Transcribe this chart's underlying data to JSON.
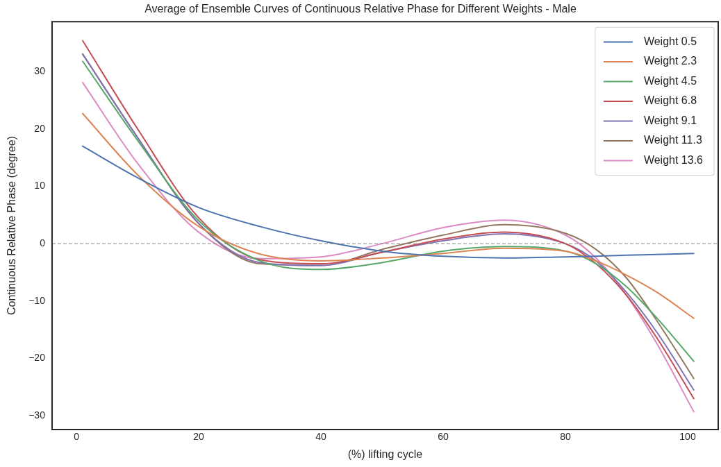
{
  "chart_data": {
    "type": "line",
    "title": "Average of Ensemble Curves of Continuous Relative Phase for Different Weights - Male",
    "xlabel": "(%) lifting cycle",
    "ylabel": "Continuous Relative Phase (degree)",
    "x": [
      1,
      10,
      20,
      30,
      40,
      50,
      60,
      70,
      80,
      85,
      90,
      95,
      101
    ],
    "series": [
      {
        "name": "Weight 0.5",
        "color": "#4c72b0",
        "values": [
          17,
          11.5,
          6.3,
          3,
          0.5,
          -1.3,
          -2.2,
          -2.5,
          -2.3,
          -2.2,
          -2,
          -1.9,
          -1.7
        ]
      },
      {
        "name": "Weight 2.3",
        "color": "#dd8452",
        "values": [
          22.7,
          12,
          3,
          -1.8,
          -3,
          -2.5,
          -1.7,
          -0.8,
          -1.3,
          -3,
          -5.5,
          -8.5,
          -13
        ]
      },
      {
        "name": "Weight 4.5",
        "color": "#55a868",
        "values": [
          31.8,
          18,
          4,
          -3,
          -4.5,
          -3.3,
          -1.3,
          -0.5,
          -1.3,
          -3.5,
          -7.5,
          -13,
          -20.5
        ]
      },
      {
        "name": "Weight 6.8",
        "color": "#c44e52",
        "values": [
          35.4,
          20,
          4.5,
          -2.8,
          -3.5,
          -1.5,
          0.8,
          2,
          0,
          -3.5,
          -9,
          -16.5,
          -27
        ]
      },
      {
        "name": "Weight 9.1",
        "color": "#8172b3",
        "values": [
          33,
          18.5,
          3.5,
          -3.3,
          -3.8,
          -1.5,
          0.5,
          1.7,
          0,
          -3,
          -8.5,
          -15.5,
          -25.5
        ]
      },
      {
        "name": "Weight 11.3",
        "color": "#937860",
        "values": [
          33.1,
          18.5,
          3.5,
          -3.5,
          -3.8,
          -1,
          1.5,
          3.3,
          1.8,
          -1,
          -6,
          -13.5,
          -23.5
        ]
      },
      {
        "name": "Weight 13.6",
        "color": "#da8bc3",
        "values": [
          28.1,
          14,
          2,
          -2.6,
          -2.3,
          0,
          2.8,
          4.1,
          1.5,
          -2.5,
          -9,
          -17.5,
          -29.3
        ]
      }
    ],
    "xlim": [
      -4,
      105
    ],
    "xticks": [
      0,
      20,
      40,
      60,
      80,
      100
    ],
    "ylim": [
      -32.4,
      38.7
    ],
    "yticks": [
      -30,
      -20,
      -10,
      0,
      10,
      20,
      30
    ],
    "ref_lines": [
      {
        "axis": "y",
        "value": 0,
        "color": "#808080",
        "line_style": "dashed"
      }
    ],
    "grid": false,
    "legend": "top right",
    "marker": "none",
    "line_style": "solid"
  }
}
